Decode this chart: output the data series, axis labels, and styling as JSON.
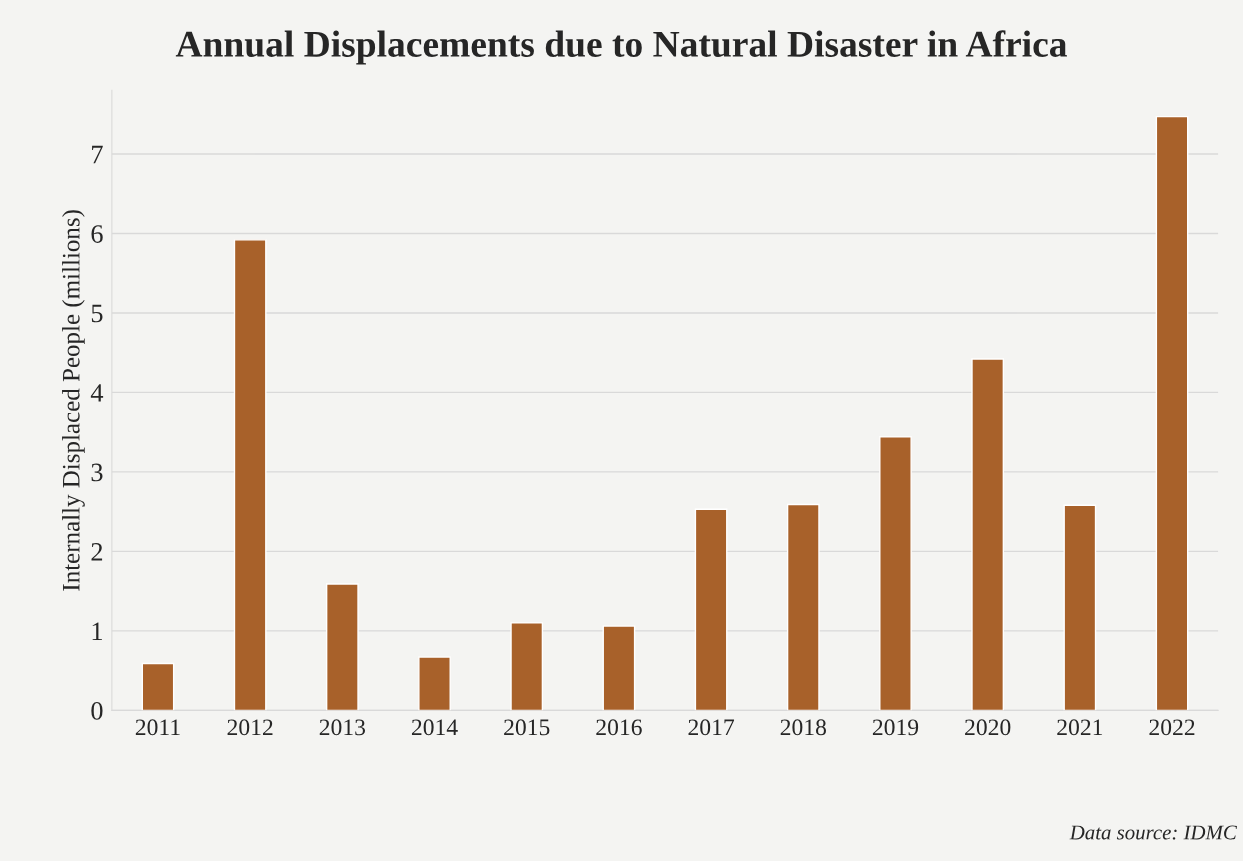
{
  "chart_data": {
    "type": "bar",
    "title": "Annual Displacements due to Natural Disaster in Africa",
    "ylabel": "Internally Displaced People (millions)",
    "categories": [
      "2011",
      "2012",
      "2013",
      "2014",
      "2015",
      "2016",
      "2017",
      "2018",
      "2019",
      "2020",
      "2021",
      "2022"
    ],
    "values": [
      0.59,
      5.92,
      1.59,
      0.67,
      1.1,
      1.06,
      2.53,
      2.59,
      3.44,
      4.42,
      2.58,
      7.47
    ],
    "color": "#a8612a",
    "ylim": [
      0,
      7.8
    ],
    "yticks": [
      0,
      1,
      2,
      3,
      4,
      5,
      6,
      7
    ],
    "grid": "y",
    "annotations": [
      "Data source: IDMC"
    ]
  }
}
